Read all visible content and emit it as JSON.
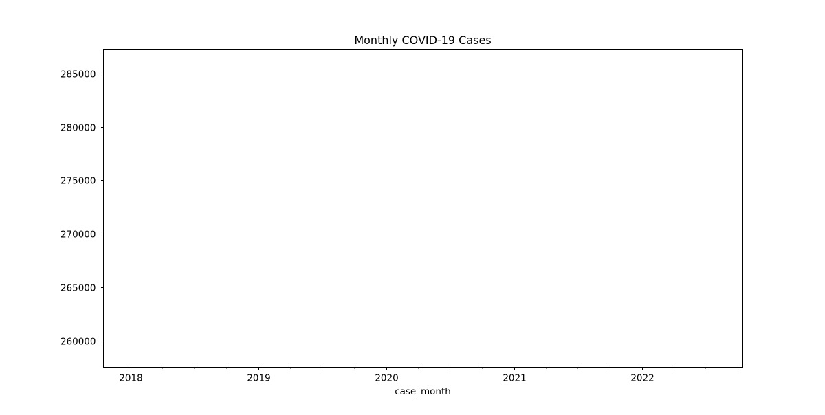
{
  "chart_data": {
    "type": "line",
    "title": "Monthly COVID-19 Cases",
    "xlabel": "case_month",
    "ylabel": "",
    "x_axis": {
      "kind": "date",
      "range": [
        "2017-10-16",
        "2022-10-15"
      ],
      "major_ticks": [
        {
          "value": "2018-01-01",
          "label": "2018"
        },
        {
          "value": "2019-01-01",
          "label": "2019"
        },
        {
          "value": "2020-01-01",
          "label": "2020"
        },
        {
          "value": "2021-01-01",
          "label": "2021"
        },
        {
          "value": "2022-01-01",
          "label": "2022"
        }
      ],
      "minor_ticks": [
        "2018-04-01",
        "2018-07-01",
        "2018-10-01",
        "2019-04-01",
        "2019-07-01",
        "2019-10-01",
        "2020-04-01",
        "2020-07-01",
        "2020-10-01",
        "2021-04-01",
        "2021-07-01",
        "2021-10-01",
        "2022-04-01",
        "2022-07-01",
        "2022-10-01"
      ]
    },
    "y_axis": {
      "range": [
        257500,
        287200
      ],
      "ticks": [
        260000,
        265000,
        270000,
        275000,
        280000,
        285000
      ]
    },
    "grid": false,
    "legend": "none",
    "series": [
      {
        "x": [],
        "y": [],
        "color": "#1f77b4"
      }
    ]
  }
}
